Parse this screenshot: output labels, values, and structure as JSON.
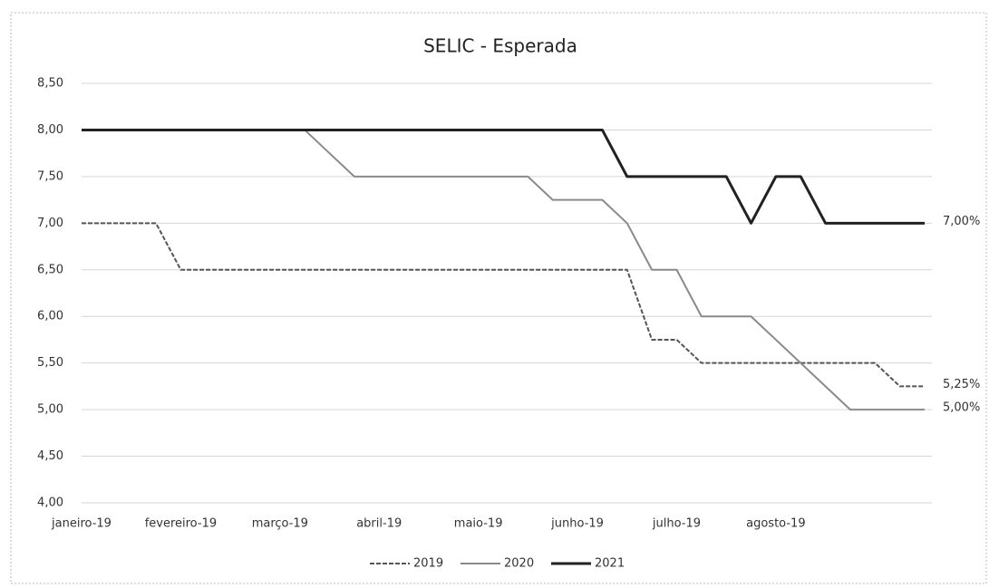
{
  "chart_data": {
    "type": "line",
    "title": "SELIC - Esperada",
    "categories": [
      "janeiro-19",
      null,
      null,
      null,
      "fevereiro-19",
      null,
      null,
      null,
      "março-19",
      null,
      null,
      null,
      "abril-19",
      null,
      null,
      null,
      "maio-19",
      null,
      null,
      null,
      "junho-19",
      null,
      null,
      null,
      "julho-19",
      null,
      null,
      null,
      "agosto-19",
      null,
      null,
      null,
      null,
      null,
      null
    ],
    "ylim": [
      4.0,
      8.5
    ],
    "yticks": [
      {
        "value": 4.0,
        "label": "4,00"
      },
      {
        "value": 4.5,
        "label": "4,50"
      },
      {
        "value": 5.0,
        "label": "5,00"
      },
      {
        "value": 5.5,
        "label": "5,50"
      },
      {
        "value": 6.0,
        "label": "6,00"
      },
      {
        "value": 6.5,
        "label": "6,50"
      },
      {
        "value": 7.0,
        "label": "7,00"
      },
      {
        "value": 7.5,
        "label": "7,50"
      },
      {
        "value": 8.0,
        "label": "8,00"
      },
      {
        "value": 8.5,
        "label": "8,50"
      }
    ],
    "grid": true,
    "legend": "bottom",
    "series": [
      {
        "name": "2019",
        "color": "#555555",
        "dashed": true,
        "values": [
          7.0,
          7.0,
          7.0,
          7.0,
          6.5,
          6.5,
          6.5,
          6.5,
          6.5,
          6.5,
          6.5,
          6.5,
          6.5,
          6.5,
          6.5,
          6.5,
          6.5,
          6.5,
          6.5,
          6.5,
          6.5,
          6.5,
          6.5,
          5.75,
          5.75,
          5.5,
          5.5,
          5.5,
          5.5,
          5.5,
          5.5,
          5.5,
          5.5,
          5.25,
          5.25
        ],
        "value_labels": [
          null,
          null,
          null,
          null,
          null,
          null,
          null,
          null,
          null,
          null,
          null,
          null,
          null,
          null,
          null,
          null,
          null,
          null,
          null,
          null,
          null,
          null,
          null,
          null,
          null,
          null,
          null,
          null,
          null,
          null,
          null,
          null,
          null,
          null,
          "5,25%"
        ]
      },
      {
        "name": "2020",
        "color": "#8a8a8a",
        "dashed": false,
        "values": [
          8.0,
          8.0,
          8.0,
          8.0,
          8.0,
          8.0,
          8.0,
          8.0,
          8.0,
          8.0,
          7.75,
          7.5,
          7.5,
          7.5,
          7.5,
          7.5,
          7.5,
          7.5,
          7.5,
          7.25,
          7.25,
          7.25,
          7.0,
          6.5,
          6.5,
          6.0,
          6.0,
          6.0,
          5.75,
          5.5,
          5.25,
          5.0,
          5.0,
          5.0,
          5.0
        ],
        "value_labels": [
          null,
          null,
          null,
          null,
          null,
          null,
          null,
          null,
          null,
          null,
          null,
          null,
          null,
          null,
          null,
          null,
          null,
          null,
          null,
          null,
          null,
          null,
          null,
          null,
          null,
          null,
          null,
          null,
          null,
          null,
          null,
          null,
          null,
          null,
          "5,00%"
        ]
      },
      {
        "name": "2021",
        "color": "#222222",
        "dashed": false,
        "values": [
          8.0,
          8.0,
          8.0,
          8.0,
          8.0,
          8.0,
          8.0,
          8.0,
          8.0,
          8.0,
          8.0,
          8.0,
          8.0,
          8.0,
          8.0,
          8.0,
          8.0,
          8.0,
          8.0,
          8.0,
          8.0,
          8.0,
          7.5,
          7.5,
          7.5,
          7.5,
          7.5,
          7.0,
          7.5,
          7.5,
          7.0,
          7.0,
          7.0,
          7.0,
          7.0
        ],
        "value_labels": [
          null,
          null,
          null,
          null,
          null,
          null,
          null,
          null,
          null,
          null,
          null,
          null,
          null,
          null,
          null,
          null,
          null,
          null,
          null,
          null,
          null,
          null,
          null,
          null,
          null,
          null,
          null,
          null,
          null,
          null,
          null,
          null,
          null,
          null,
          "7,00%"
        ]
      }
    ]
  }
}
